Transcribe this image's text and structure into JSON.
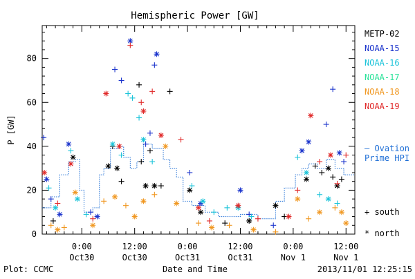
{
  "chart_data": {
    "type": "scatter",
    "title": "Hemispheric Power [GW]",
    "ylabel": "P [GW]",
    "xlabel": "Date and Time",
    "ylim": [
      0,
      95
    ],
    "xlim": [
      "2013-10-29 15:00",
      "2013-11-01 14:00"
    ],
    "yticks": [
      0,
      20,
      40,
      60,
      80
    ],
    "xticks": [
      {
        "t": "2013-10-30 00:00",
        "time": "0:00",
        "date": "Oct30"
      },
      {
        "t": "2013-10-30 12:00",
        "time": "12:00",
        "date": "Oct30"
      },
      {
        "t": "2013-10-31 00:00",
        "time": "0:00",
        "date": "Oct31"
      },
      {
        "t": "2013-10-31 12:00",
        "time": "12:00",
        "date": "Oct31"
      },
      {
        "t": "2013-11-01 00:00",
        "time": "0:00",
        "date": "Nov 1"
      },
      {
        "t": "2013-11-01 12:00",
        "time": "12:00",
        "date": "Nov 1"
      }
    ],
    "marker_legend": {
      "south": "+ south",
      "north": "* north"
    },
    "series": [
      {
        "name": "METP-02",
        "color": "#000000",
        "points": [
          [
            "2013-10-29 17:30",
            6,
            "+"
          ],
          [
            "2013-10-29 22:00",
            35,
            "*"
          ],
          [
            "2013-10-30 06:00",
            31,
            "*"
          ],
          [
            "2013-10-30 07:00",
            40,
            "+"
          ],
          [
            "2013-10-30 08:00",
            30,
            "*"
          ],
          [
            "2013-10-30 09:00",
            24,
            "+"
          ],
          [
            "2013-10-30 13:00",
            68,
            "+"
          ],
          [
            "2013-10-30 13:30",
            33,
            "+"
          ],
          [
            "2013-10-30 14:30",
            22,
            "*"
          ],
          [
            "2013-10-30 15:30",
            38,
            "+"
          ],
          [
            "2013-10-30 16:30",
            22,
            "*"
          ],
          [
            "2013-10-30 18:00",
            22,
            "+"
          ],
          [
            "2013-10-30 20:00",
            65,
            "+"
          ],
          [
            "2013-10-31 00:30",
            20,
            "*"
          ],
          [
            "2013-10-31 03:00",
            10,
            "*"
          ],
          [
            "2013-10-31 08:30",
            5,
            "+"
          ],
          [
            "2013-10-31 14:00",
            6,
            "*"
          ],
          [
            "2013-10-31 20:00",
            13,
            "*"
          ],
          [
            "2013-10-31 22:00",
            8,
            "+"
          ],
          [
            "2013-11-01 03:00",
            25,
            "*"
          ],
          [
            "2013-11-01 05:00",
            31,
            "+"
          ],
          [
            "2013-11-01 06:30",
            28,
            "+"
          ],
          [
            "2013-11-01 08:00",
            30,
            "*"
          ],
          [
            "2013-11-01 09:00",
            26,
            "+"
          ],
          [
            "2013-11-01 10:00",
            22,
            "*"
          ],
          [
            "2013-11-01 11:00",
            25,
            "+"
          ]
        ]
      },
      {
        "name": "NOAA-15",
        "color": "#1a33cc",
        "points": [
          [
            "2013-10-29 15:20",
            44,
            "+"
          ],
          [
            "2013-10-29 16:00",
            25,
            "*"
          ],
          [
            "2013-10-29 17:00",
            16,
            "+"
          ],
          [
            "2013-10-29 19:00",
            9,
            "*"
          ],
          [
            "2013-10-29 21:00",
            41,
            "*"
          ],
          [
            "2013-10-30 02:00",
            10,
            "+"
          ],
          [
            "2013-10-30 03:30",
            8,
            "*"
          ],
          [
            "2013-10-30 07:30",
            75,
            "+"
          ],
          [
            "2013-10-30 09:00",
            70,
            "+"
          ],
          [
            "2013-10-30 11:00",
            88,
            "*"
          ],
          [
            "2013-10-30 14:30",
            41,
            "+"
          ],
          [
            "2013-10-30 17:00",
            82,
            "*"
          ],
          [
            "2013-10-30 16:30",
            77,
            "+"
          ],
          [
            "2013-10-30 15:30",
            46,
            "+"
          ],
          [
            "2013-10-31 00:30",
            28,
            "+"
          ],
          [
            "2013-10-31 03:00",
            14,
            "*"
          ],
          [
            "2013-10-31 12:00",
            20,
            "*"
          ],
          [
            "2013-10-31 14:00",
            9,
            "+"
          ],
          [
            "2013-10-31 19:30",
            4,
            "+"
          ],
          [
            "2013-11-01 02:00",
            38,
            "*"
          ],
          [
            "2013-11-01 03:30",
            42,
            "*"
          ],
          [
            "2013-11-01 07:30",
            50,
            "+"
          ],
          [
            "2013-11-01 09:00",
            66,
            "+"
          ],
          [
            "2013-11-01 10:30",
            37,
            "*"
          ],
          [
            "2013-11-01 11:30",
            33,
            "+"
          ]
        ]
      },
      {
        "name": "NOAA-16",
        "color": "#19c3d9",
        "points": [
          [
            "2013-10-29 16:30",
            21,
            "+"
          ],
          [
            "2013-10-29 18:00",
            12,
            "*"
          ],
          [
            "2013-10-29 21:30",
            38,
            "+"
          ],
          [
            "2013-10-29 23:00",
            16,
            "*"
          ],
          [
            "2013-10-30 01:00",
            9,
            "+"
          ],
          [
            "2013-10-30 07:00",
            41,
            "*"
          ],
          [
            "2013-10-30 09:00",
            36,
            "+"
          ],
          [
            "2013-10-30 10:30",
            64,
            "+"
          ],
          [
            "2013-10-30 11:30",
            62,
            "+"
          ],
          [
            "2013-10-30 13:00",
            53,
            "+"
          ],
          [
            "2013-10-30 14:00",
            43,
            "*"
          ],
          [
            "2013-10-30 16:00",
            33,
            "+"
          ],
          [
            "2013-10-31 01:00",
            22,
            "+"
          ],
          [
            "2013-10-31 03:30",
            15,
            "*"
          ],
          [
            "2013-10-31 06:00",
            10,
            "+"
          ],
          [
            "2013-10-31 09:00",
            12,
            "+"
          ],
          [
            "2013-10-31 11:30",
            12,
            "*"
          ],
          [
            "2013-10-31 14:30",
            8,
            "+"
          ],
          [
            "2013-11-01 01:00",
            35,
            "+"
          ],
          [
            "2013-11-01 03:00",
            28,
            "*"
          ],
          [
            "2013-11-01 06:00",
            18,
            "+"
          ],
          [
            "2013-11-01 08:00",
            16,
            "*"
          ],
          [
            "2013-11-01 10:00",
            14,
            "+"
          ]
        ]
      },
      {
        "name": "NOAA-17",
        "color": "#2be29a",
        "points": []
      },
      {
        "name": "NOAA-18",
        "color": "#f0961e",
        "points": [
          [
            "2013-10-29 17:00",
            4,
            "+"
          ],
          [
            "2013-10-29 18:30",
            2,
            "*"
          ],
          [
            "2013-10-29 20:00",
            3,
            "+"
          ],
          [
            "2013-10-29 22:30",
            19,
            "*"
          ],
          [
            "2013-10-30 02:30",
            4,
            "*"
          ],
          [
            "2013-10-30 05:00",
            15,
            "+"
          ],
          [
            "2013-10-30 07:30",
            17,
            "*"
          ],
          [
            "2013-10-30 10:00",
            13,
            "+"
          ],
          [
            "2013-10-30 12:00",
            8,
            "*"
          ],
          [
            "2013-10-30 14:00",
            15,
            "*"
          ],
          [
            "2013-10-30 16:30",
            18,
            "+"
          ],
          [
            "2013-10-30 19:00",
            40,
            "*"
          ],
          [
            "2013-10-30 21:30",
            14,
            "*"
          ],
          [
            "2013-10-31 02:30",
            5,
            "+"
          ],
          [
            "2013-10-31 05:30",
            3,
            "*"
          ],
          [
            "2013-10-31 09:30",
            4,
            "+"
          ],
          [
            "2013-10-31 15:00",
            2,
            "*"
          ],
          [
            "2013-10-31 20:00",
            1,
            "+"
          ],
          [
            "2013-11-01 01:00",
            16,
            "*"
          ],
          [
            "2013-11-01 03:30",
            7,
            "+"
          ],
          [
            "2013-11-01 06:00",
            10,
            "*"
          ],
          [
            "2013-11-01 09:30",
            12,
            "+"
          ],
          [
            "2013-11-01 11:00",
            10,
            "*"
          ],
          [
            "2013-11-01 12:00",
            5,
            "*"
          ]
        ]
      },
      {
        "name": "NOAA-19",
        "color": "#e02828",
        "points": [
          [
            "2013-10-29 15:30",
            28,
            "*"
          ],
          [
            "2013-10-29 18:30",
            14,
            "+"
          ],
          [
            "2013-10-29 21:30",
            32,
            "*"
          ],
          [
            "2013-10-30 02:30",
            7,
            "+"
          ],
          [
            "2013-10-30 05:30",
            64,
            "*"
          ],
          [
            "2013-10-30 08:30",
            40,
            "*"
          ],
          [
            "2013-10-30 11:00",
            86,
            "+"
          ],
          [
            "2013-10-30 13:30",
            60,
            "+"
          ],
          [
            "2013-10-30 14:00",
            56,
            "*"
          ],
          [
            "2013-10-30 16:00",
            65,
            "+"
          ],
          [
            "2013-10-30 18:00",
            45,
            "*"
          ],
          [
            "2013-10-30 22:30",
            43,
            "+"
          ],
          [
            "2013-10-31 02:30",
            12,
            "*"
          ],
          [
            "2013-10-31 05:00",
            6,
            "+"
          ],
          [
            "2013-10-31 11:30",
            13,
            "*"
          ],
          [
            "2013-10-31 16:00",
            7,
            "+"
          ],
          [
            "2013-10-31 23:00",
            8,
            "*"
          ],
          [
            "2013-11-01 01:00",
            20,
            "+"
          ],
          [
            "2013-11-01 04:00",
            54,
            "*"
          ],
          [
            "2013-11-01 06:00",
            33,
            "+"
          ],
          [
            "2013-11-01 08:30",
            36,
            "*"
          ],
          [
            "2013-11-01 10:00",
            23,
            "+"
          ],
          [
            "2013-11-01 12:00",
            36,
            "+"
          ]
        ]
      },
      {
        "name": "Ovation Prime HPI",
        "color": "#1f6fd6",
        "type": "step",
        "points": [
          [
            "2013-10-29 15:00",
            12
          ],
          [
            "2013-10-29 17:00",
            17
          ],
          [
            "2013-10-29 19:00",
            27
          ],
          [
            "2013-10-29 21:00",
            33
          ],
          [
            "2013-10-29 22:30",
            34
          ],
          [
            "2013-10-29 23:30",
            20
          ],
          [
            "2013-10-30 00:30",
            10
          ],
          [
            "2013-10-30 02:30",
            12
          ],
          [
            "2013-10-30 04:00",
            27
          ],
          [
            "2013-10-30 05:00",
            30
          ],
          [
            "2013-10-30 06:30",
            39
          ],
          [
            "2013-10-30 08:30",
            40
          ],
          [
            "2013-10-30 09:30",
            35
          ],
          [
            "2013-10-30 11:00",
            30
          ],
          [
            "2013-10-30 12:30",
            33
          ],
          [
            "2013-10-30 14:00",
            41
          ],
          [
            "2013-10-30 16:00",
            39
          ],
          [
            "2013-10-30 18:30",
            34
          ],
          [
            "2013-10-30 20:00",
            30
          ],
          [
            "2013-10-30 21:30",
            26
          ],
          [
            "2013-10-30 23:00",
            15
          ],
          [
            "2013-10-31 01:00",
            13
          ],
          [
            "2013-10-31 04:00",
            10
          ],
          [
            "2013-10-31 07:00",
            8
          ],
          [
            "2013-10-31 12:00",
            9
          ],
          [
            "2013-10-31 16:00",
            7
          ],
          [
            "2013-10-31 20:00",
            15
          ],
          [
            "2013-10-31 22:00",
            21
          ],
          [
            "2013-11-01 00:30",
            27
          ],
          [
            "2013-11-01 02:00",
            30
          ],
          [
            "2013-11-01 03:30",
            32
          ],
          [
            "2013-11-01 05:30",
            30
          ],
          [
            "2013-11-01 07:30",
            34
          ],
          [
            "2013-11-01 09:30",
            30
          ],
          [
            "2013-11-01 11:30",
            27
          ],
          [
            "2013-11-01 14:00",
            27
          ]
        ]
      }
    ],
    "legend_entries": [
      {
        "label": "METP-02",
        "color": "#000000"
      },
      {
        "label": "NOAA-15",
        "color": "#1a33cc"
      },
      {
        "label": "NOAA-16",
        "color": "#19c3d9"
      },
      {
        "label": "NOAA-17",
        "color": "#2be29a"
      },
      {
        "label": "NOAA-18",
        "color": "#f0961e"
      },
      {
        "label": "NOAA-19",
        "color": "#e02828"
      }
    ],
    "hpi_legend": {
      "line1": "– Ovation",
      "line2": "Prime HPI",
      "color": "#1f6fd6"
    }
  },
  "footer": {
    "plot_credit": "Plot: CCMC",
    "timestamp": "2013/11/01 12:25:15"
  }
}
